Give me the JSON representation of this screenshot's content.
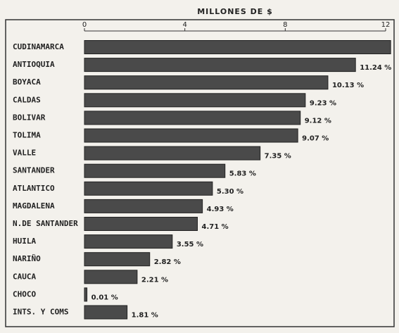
{
  "chart_data": {
    "type": "bar",
    "orientation": "horizontal",
    "xlabel": "MILLONES DE $",
    "categories": [
      "CUDINAMARCA",
      "ANTIOQUIA",
      "BOYACA",
      "CALDAS",
      "BOLIVAR",
      "TOLIMA",
      "VALLE",
      "SANTANDER",
      "ATLANTICO",
      "MAGDALENA",
      "N.DE SANTANDER",
      "HUILA",
      "NARIÑO",
      "CAUCA",
      "CHOCO",
      "INTS. Y COMS"
    ],
    "values": [
      12.2,
      10.8,
      9.7,
      8.8,
      8.6,
      8.5,
      7.0,
      5.6,
      5.1,
      4.7,
      4.5,
      3.5,
      2.6,
      2.1,
      0.1,
      1.7
    ],
    "share_labels": [
      null,
      "11.24 %",
      "10.13 %",
      "9.23 %",
      "9.12 %",
      "9.07 %",
      "7.35 %",
      "5.83 %",
      "5.30 %",
      "4.93 %",
      "4.71 %",
      "3.55 %",
      "2.82 %",
      "2.21 %",
      "0.01 %",
      "1.81 %"
    ],
    "color": "#4a4a4a",
    "xlim": [
      0,
      12
    ],
    "xticks": [
      0,
      4,
      8,
      12
    ],
    "grid": false
  }
}
